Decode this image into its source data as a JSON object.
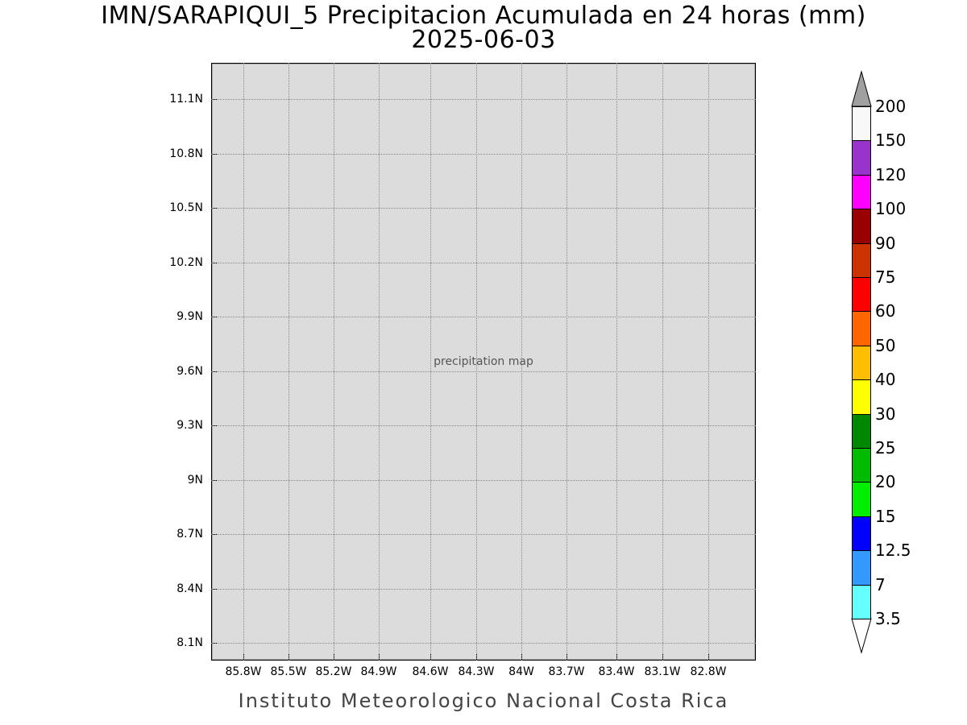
{
  "title": {
    "line1": "IMN/SARAPIQUI_5 Precipitacion Acumulada en 24 horas (mm)",
    "line2": "2025-06-03"
  },
  "map": {
    "placeholder_label": "precipitation map"
  },
  "y_axis": {
    "ticks": [
      "11.1N",
      "10.8N",
      "10.5N",
      "10.2N",
      "9.9N",
      "9.6N",
      "9.3N",
      "9N",
      "8.7N",
      "8.4N",
      "8.1N"
    ]
  },
  "x_axis": {
    "ticks": [
      "85.8W",
      "85.5W",
      "85.2W",
      "84.9W",
      "84.6W",
      "84.3W",
      "84W",
      "83.7W",
      "83.4W",
      "83.1W",
      "82.8W"
    ]
  },
  "legend": {
    "labels": [
      "200",
      "150",
      "120",
      "100",
      "90",
      "75",
      "60",
      "50",
      "40",
      "30",
      "25",
      "20",
      "15",
      "12.5",
      "7",
      "3.5"
    ],
    "colors": [
      "#f8f8f8",
      "#9933cc",
      "#ff00ff",
      "#990000",
      "#cc3300",
      "#ff0000",
      "#ff6600",
      "#ffbf00",
      "#ffff00",
      "#008800",
      "#00bb00",
      "#00ee00",
      "#0000ff",
      "#3399ff",
      "#66ffff"
    ],
    "over_color": "#a0a0a0"
  },
  "footer": "Instituto Meteorologico Nacional Costa Rica"
}
